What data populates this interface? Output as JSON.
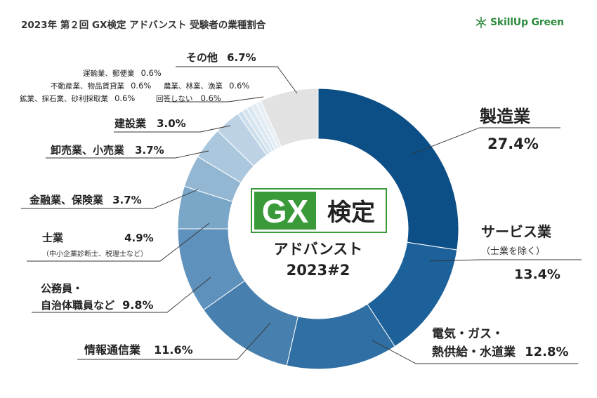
{
  "title": "2023年 第２回 GX検定 アドバンスト 受験者の業種割合",
  "logo": {
    "text": "SkillUp Green",
    "icon": "snowflake-icon",
    "color": "#2e8b3e"
  },
  "center": {
    "badge_gx": "GX",
    "badge_kentei": "検定",
    "line1": "アドバンスト",
    "line2": "2023#2",
    "badge_green": "#3a9a3a"
  },
  "labels": {
    "seizo": {
      "name": "製造業",
      "value": "27.4%"
    },
    "service": {
      "name": "サービス業",
      "note": "（士業を除く）",
      "value": "13.4%"
    },
    "denki": {
      "name1": "電気・ガス・",
      "name2": "熱供給・水道業",
      "value": "12.8%"
    },
    "joho": {
      "name": "情報通信業",
      "value": "11.6%"
    },
    "komuin": {
      "name1": "公務員・",
      "name2": "自治体職員など",
      "value": "9.8%"
    },
    "shigyo": {
      "name": "士業",
      "note": "（中小企業診断士、税理士など）",
      "value": "4.9%"
    },
    "kinyu": {
      "name": "金融業、保険業",
      "value": "3.7%"
    },
    "oroshi": {
      "name": "卸売業、小売業",
      "value": "3.7%"
    },
    "kensetsu": {
      "name": "建設業",
      "value": "3.0%"
    },
    "unyu": {
      "name": "運輸業、郵便業",
      "value": "0.6%"
    },
    "fudosan": {
      "name": "不動産業、物品賃貸業",
      "value": "0.6%"
    },
    "nogyo": {
      "name": "農業、林業、漁業",
      "value": "0.6%"
    },
    "kogyo": {
      "name": "鉱業、採石業、砂利採取業",
      "value": "0.6%"
    },
    "kaito": {
      "name": "回答しない",
      "value": "0.6%"
    },
    "sonota": {
      "name": "その他",
      "value": "6.7%"
    }
  },
  "chart_data": {
    "type": "pie",
    "title": "2023年 第２回 GX検定 アドバンスト 受験者の業種割合",
    "unit": "%",
    "categories": [
      "製造業",
      "サービス業（士業を除く）",
      "電気・ガス・熱供給・水道業",
      "情報通信業",
      "公務員・自治体職員など",
      "士業（中小企業診断士、税理士など）",
      "金融業、保険業",
      "卸売業、小売業",
      "建設業",
      "運輸業、郵便業",
      "不動産業、物品賃貸業",
      "農業、林業、漁業",
      "鉱業、採石業、砂利採取業",
      "回答しない",
      "その他"
    ],
    "values": [
      27.4,
      13.4,
      12.8,
      11.6,
      9.8,
      4.9,
      3.7,
      3.7,
      3.0,
      0.6,
      0.6,
      0.6,
      0.6,
      0.6,
      6.7
    ],
    "colors": [
      "#0c4f86",
      "#1c6199",
      "#2f6fa4",
      "#4780ae",
      "#5e91bb",
      "#7aa6c8",
      "#93b7d3",
      "#aac7dd",
      "#bdd3e5",
      "#cddfec",
      "#d6e4ef",
      "#dce8f1",
      "#e2ecf3",
      "#e7eff5",
      "#e2e2e2"
    ],
    "donut": true,
    "start": "12 o'clock",
    "direction": "clockwise",
    "legend": "none"
  }
}
